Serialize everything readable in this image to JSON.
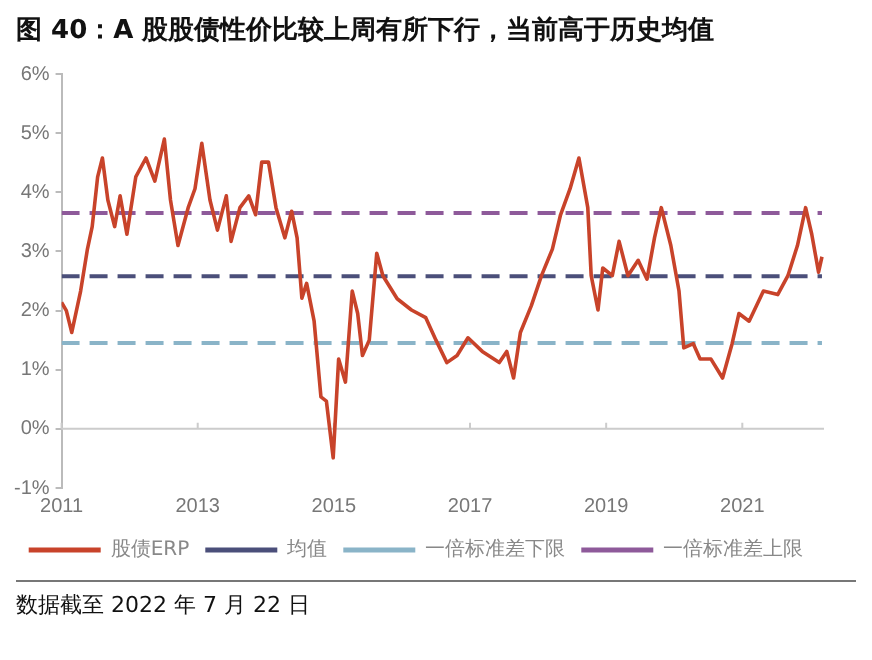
{
  "chart_data": {
    "type": "line",
    "title": "图 40：A 股股债性价比较上周有所下行，当前高于历史均值",
    "annotations": [
      "数据截至 2022 年 7 月 22 日"
    ],
    "series": [
      {
        "name": "股债ERP",
        "color": "#c8432a",
        "line_style": "solid",
        "x": [
          2011.0,
          2011.07,
          2011.15,
          2011.28,
          2011.38,
          2011.45,
          2011.53,
          2011.6,
          2011.68,
          2011.78,
          2011.86,
          2011.96,
          2012.09,
          2012.24,
          2012.37,
          2012.51,
          2012.6,
          2012.71,
          2012.86,
          2012.96,
          2013.06,
          2013.18,
          2013.29,
          2013.42,
          2013.49,
          2013.62,
          2013.75,
          2013.85,
          2013.94,
          2014.04,
          2014.15,
          2014.28,
          2014.38,
          2014.46,
          2014.53,
          2014.6,
          2014.71,
          2014.81,
          2014.89,
          2014.99,
          2015.07,
          2015.17,
          2015.27,
          2015.35,
          2015.42,
          2015.52,
          2015.63,
          2015.72,
          2015.93,
          2016.14,
          2016.35,
          2016.5,
          2016.66,
          2016.81,
          2016.97,
          2017.18,
          2017.43,
          2017.54,
          2017.64,
          2017.74,
          2017.9,
          2018.05,
          2018.21,
          2018.33,
          2018.47,
          2018.6,
          2018.73,
          2018.78,
          2018.88,
          2018.95,
          2019.09,
          2019.19,
          2019.32,
          2019.47,
          2019.6,
          2019.71,
          2019.81,
          2019.95,
          2020.07,
          2020.14,
          2020.28,
          2020.38,
          2020.54,
          2020.71,
          2020.85,
          2020.95,
          2021.1,
          2021.31,
          2021.52,
          2021.67,
          2021.81,
          2021.93,
          2022.02,
          2022.12,
          2022.17
        ],
        "values": [
          2.14,
          2.0,
          1.63,
          2.33,
          3.04,
          3.42,
          4.26,
          4.58,
          3.87,
          3.42,
          3.94,
          3.29,
          4.26,
          4.58,
          4.19,
          4.9,
          3.87,
          3.1,
          3.74,
          4.06,
          4.83,
          3.87,
          3.36,
          3.94,
          3.17,
          3.74,
          3.94,
          3.62,
          4.51,
          4.51,
          3.74,
          3.23,
          3.68,
          3.23,
          2.21,
          2.46,
          1.82,
          0.54,
          0.47,
          -0.49,
          1.18,
          0.79,
          2.33,
          1.95,
          1.24,
          1.5,
          2.97,
          2.59,
          2.2,
          2.01,
          1.88,
          1.5,
          1.12,
          1.24,
          1.54,
          1.31,
          1.12,
          1.31,
          0.86,
          1.63,
          2.08,
          2.59,
          3.04,
          3.62,
          4.06,
          4.58,
          3.74,
          2.59,
          2.01,
          2.72,
          2.59,
          3.17,
          2.59,
          2.85,
          2.53,
          3.23,
          3.74,
          3.1,
          2.33,
          1.37,
          1.44,
          1.18,
          1.18,
          0.86,
          1.44,
          1.95,
          1.82,
          2.33,
          2.27,
          2.59,
          3.1,
          3.74,
          3.29,
          2.65,
          2.91
        ]
      },
      {
        "name": "均值",
        "color": "#4b4f7a",
        "line_style": "dashed",
        "x": [
          2011.0,
          2022.17
        ],
        "values": [
          2.58,
          2.58
        ]
      },
      {
        "name": "一倍标准差下限",
        "color": "#8ab4c8",
        "line_style": "dashed",
        "x": [
          2011.0,
          2022.17
        ],
        "values": [
          1.45,
          1.45
        ]
      },
      {
        "name": "一倍标准差上限",
        "color": "#8e5a9a",
        "line_style": "dashed",
        "x": [
          2011.0,
          2022.17
        ],
        "values": [
          3.65,
          3.65
        ]
      }
    ],
    "xlim": [
      2011,
      2022.2
    ],
    "xticks": [
      2011,
      2013,
      2015,
      2017,
      2019,
      2021
    ],
    "ylim": [
      -1,
      6
    ],
    "yticks": [
      {
        "value": -1,
        "label": "-1%"
      },
      {
        "value": 0,
        "label": "0%"
      },
      {
        "value": 1,
        "label": "1%"
      },
      {
        "value": 2,
        "label": "2%"
      },
      {
        "value": 3,
        "label": "3%"
      },
      {
        "value": 4,
        "label": "4%"
      },
      {
        "value": 5,
        "label": "5%"
      },
      {
        "value": 6,
        "label": "6%"
      }
    ],
    "ref_lines": [
      {
        "axis": "y",
        "value": 0,
        "color": "#cccccc"
      }
    ],
    "grid": false,
    "legend": "bottom",
    "marker": "none"
  }
}
